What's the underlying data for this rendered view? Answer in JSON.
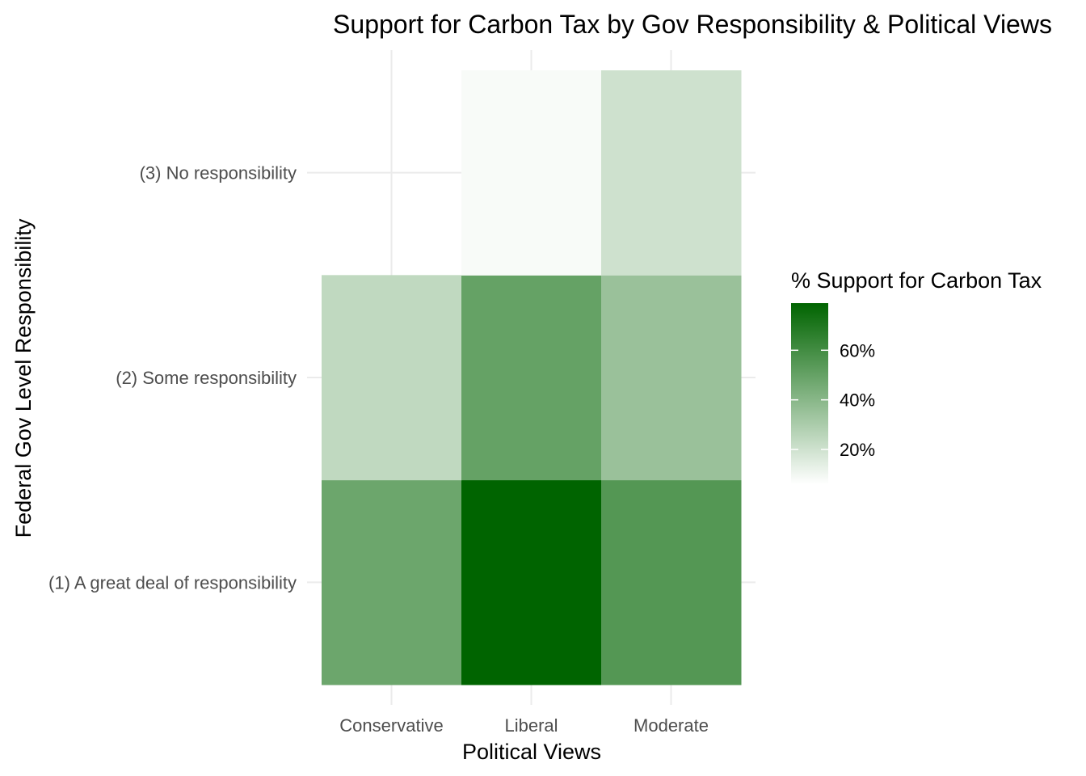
{
  "chart_data": {
    "type": "heatmap",
    "title": "Support for Carbon Tax by Gov Responsibility & Political Views",
    "xlabel": "Political Views",
    "ylabel": "Federal Gov Level Responsibility",
    "x_categories": [
      "Conservative",
      "Liberal",
      "Moderate"
    ],
    "y_categories": [
      "(1) A great deal of responsibility",
      "(2) Some responsibility",
      "(3) No responsibility"
    ],
    "cells": [
      {
        "x": "Conservative",
        "y": "(1) A great deal of responsibility",
        "value": 48
      },
      {
        "x": "Liberal",
        "y": "(1) A great deal of responsibility",
        "value": 79
      },
      {
        "x": "Moderate",
        "y": "(1) A great deal of responsibility",
        "value": 55
      },
      {
        "x": "Conservative",
        "y": "(2) Some responsibility",
        "value": 24
      },
      {
        "x": "Liberal",
        "y": "(2) Some responsibility",
        "value": 50
      },
      {
        "x": "Moderate",
        "y": "(2) Some responsibility",
        "value": 35
      },
      {
        "x": "Liberal",
        "y": "(3) No responsibility",
        "value": 8
      },
      {
        "x": "Moderate",
        "y": "(3) No responsibility",
        "value": 20
      }
    ],
    "legend": {
      "title": "% Support for Carbon Tax",
      "breaks": [
        20,
        40,
        60
      ],
      "labels": [
        "20%",
        "40%",
        "60%"
      ],
      "range": [
        6,
        79
      ],
      "low_color": "#ffffff",
      "high_color": "#006400",
      "placement": "right"
    },
    "grid": true
  }
}
